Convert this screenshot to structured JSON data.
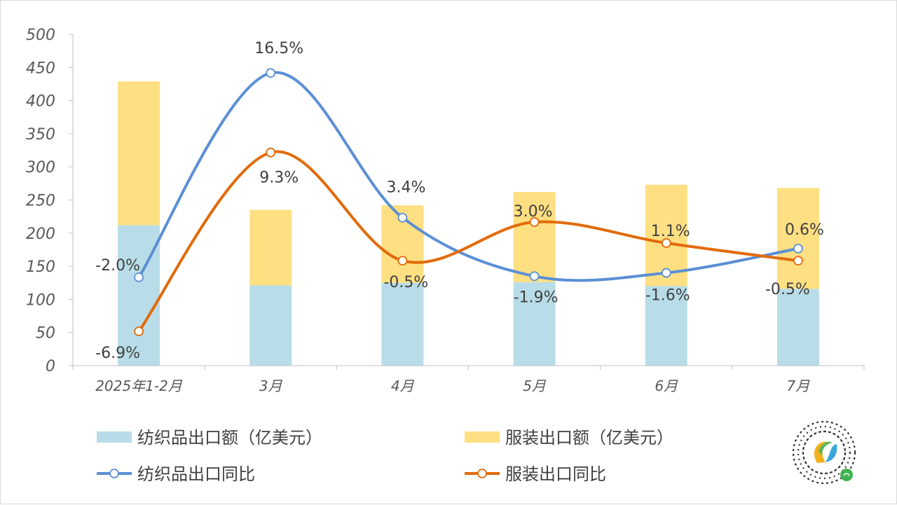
{
  "chart_data": {
    "type": "bar+line",
    "categories": [
      "2025年1-2月",
      "3月",
      "4月",
      "5月",
      "6月",
      "7月"
    ],
    "left_axis": {
      "ticks": [
        0,
        50,
        100,
        150,
        200,
        250,
        300,
        350,
        400,
        450,
        500
      ],
      "ylim": [
        0,
        500
      ]
    },
    "bar_series": [
      {
        "name": "纺织品出口额（亿美元）",
        "color": "#b9dde8",
        "values": [
          212,
          121,
          125,
          126,
          120,
          116
        ]
      },
      {
        "name": "服装出口额（亿美元）",
        "color": "#fedf82",
        "values": [
          217,
          114,
          117,
          136,
          153,
          152
        ]
      }
    ],
    "line_series": [
      {
        "name": "纺织品出口同比",
        "color": "#5b8fd5",
        "values": [
          -2.0,
          16.5,
          3.4,
          -1.9,
          -1.6,
          0.6
        ],
        "labels": [
          "-2.0%",
          "16.5%",
          "3.4%",
          "-1.9%",
          "-1.6%",
          "0.6%"
        ]
      },
      {
        "name": "服装出口同比",
        "color": "#e26b0a",
        "values": [
          -6.9,
          9.3,
          -0.5,
          3.0,
          1.1,
          -0.5
        ],
        "labels": [
          "-6.9%",
          "9.3%",
          "-0.5%",
          "3.0%",
          "1.1%",
          "-0.5%"
        ]
      }
    ],
    "legend_position": "bottom",
    "grid": false
  }
}
